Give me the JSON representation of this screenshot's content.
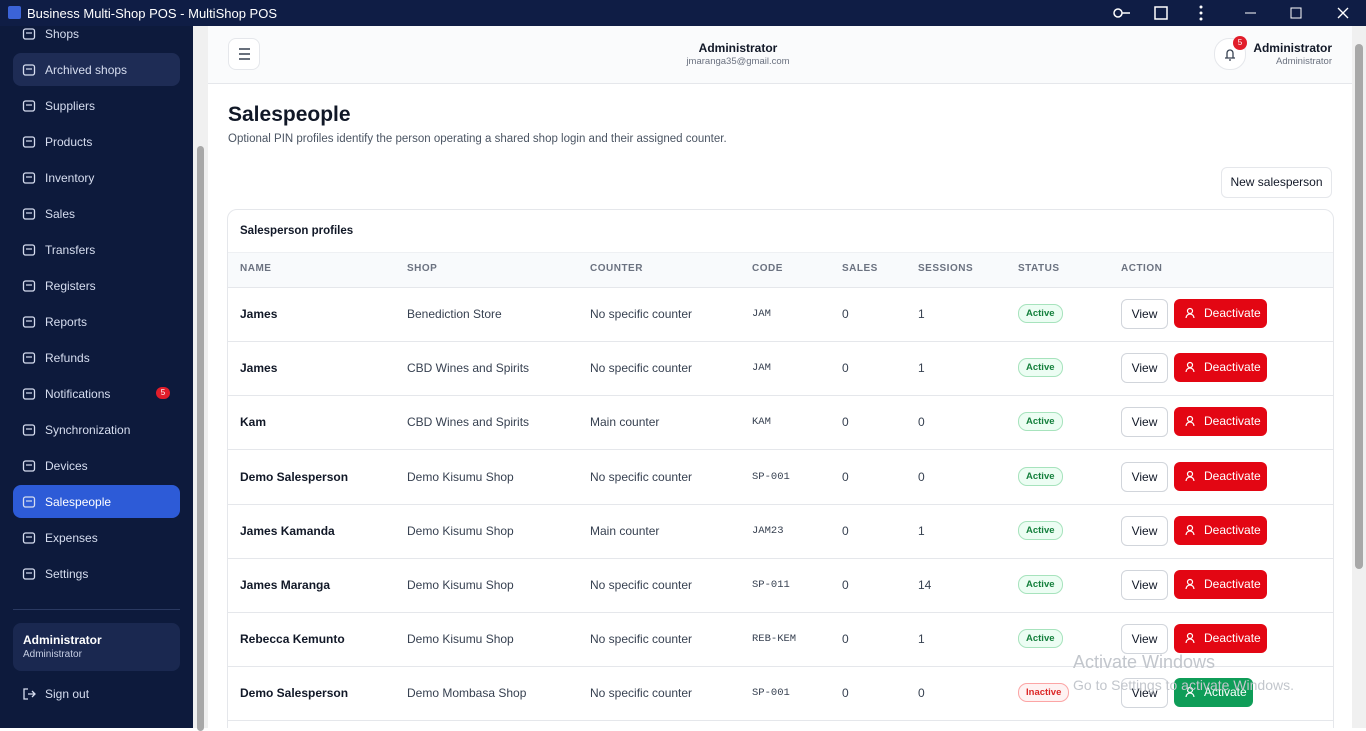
{
  "window": {
    "title": "Business Multi-Shop POS - MultiShop POS"
  },
  "sidebar": {
    "nav": [
      "Shops",
      "Archived shops",
      "Suppliers",
      "Products",
      "Inventory",
      "Sales",
      "Transfers",
      "Registers",
      "Reports",
      "Refunds",
      "Notifications",
      "Synchronization",
      "Devices",
      "Salespeople",
      "Expenses",
      "Settings"
    ],
    "notification_badge": 5,
    "user_name": "Administrator",
    "user_role": "Administrator",
    "sign_out": "Sign out"
  },
  "header": {
    "user_name": "Administrator",
    "email": "jmaranga35@gmail.com",
    "notification_count": 5,
    "account_name": "Administrator",
    "account_role": "Administrator"
  },
  "page": {
    "title": "Salespeople",
    "subtitle": "Optional PIN profiles identify the person operating a shared shop login and their assigned counter.",
    "new_button": "New salesperson"
  },
  "table": {
    "title": "Salesperson profiles",
    "columns": [
      "NAME",
      "SHOP",
      "COUNTER",
      "CODE",
      "SALES",
      "SESSIONS",
      "STATUS",
      "ACTION"
    ],
    "rows": [
      [
        "James",
        "Benediction Store",
        "No specific counter",
        "JAM",
        0,
        1,
        "Active",
        "View",
        "Deactivate"
      ],
      [
        "James",
        "CBD Wines and Spirits",
        "No specific counter",
        "JAM",
        0,
        1,
        "Active",
        "View",
        "Deactivate"
      ],
      [
        "Kam",
        "CBD Wines and Spirits",
        "Main counter",
        "KAM",
        0,
        0,
        "Active",
        "View",
        "Deactivate"
      ],
      [
        "Demo Salesperson",
        "Demo Kisumu Shop",
        "No specific counter",
        "SP-001",
        0,
        0,
        "Active",
        "View",
        "Deactivate"
      ],
      [
        "James Kamanda",
        "Demo Kisumu Shop",
        "Main counter",
        "JAM23",
        0,
        1,
        "Active",
        "View",
        "Deactivate"
      ],
      [
        "James Maranga",
        "Demo Kisumu Shop",
        "No specific counter",
        "SP-011",
        0,
        14,
        "Active",
        "View",
        "Deactivate"
      ],
      [
        "Rebecca Kemunto",
        "Demo Kisumu Shop",
        "No specific counter",
        "REB-KEM",
        0,
        1,
        "Active",
        "View",
        "Deactivate"
      ],
      [
        "Demo Salesperson",
        "Demo Mombasa Shop",
        "No specific counter",
        "SP-001",
        0,
        0,
        "Inactive",
        "View",
        "Activate"
      ]
    ]
  },
  "watermark": {
    "line1": "Activate Windows",
    "line2": "Go to Settings to activate Windows."
  }
}
